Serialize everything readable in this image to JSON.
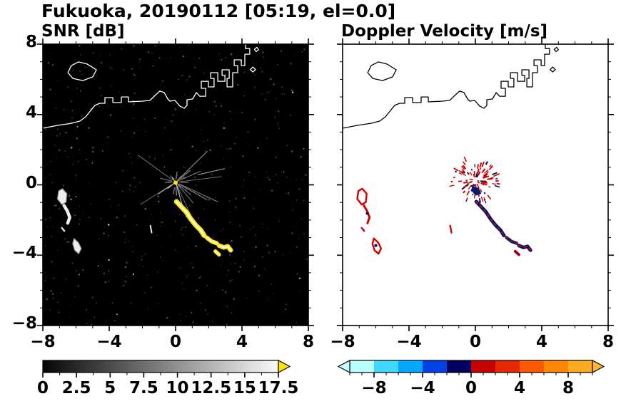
{
  "figure": {
    "title": "Fukuoka, 20190112 [05:19, el=0.0]"
  },
  "panels": [
    {
      "title": "SNR [dB]",
      "bg": "#000000",
      "coast_color": "#ffffff"
    },
    {
      "title": "Doppler Velocity [m/s]",
      "bg": "#ffffff",
      "coast_color": "#000000"
    }
  ],
  "axes": {
    "range": [
      -8,
      8
    ],
    "minor_step": 1,
    "tick_values": [
      -8,
      -4,
      0,
      4,
      8
    ],
    "tick_labels": [
      "−8",
      "−4",
      "0",
      "4",
      "8"
    ]
  },
  "colorbars": [
    {
      "name": "snr-scale",
      "range": [
        0,
        17.5
      ],
      "minor_step": 1.25,
      "values": [
        0,
        2.5,
        5,
        7.5,
        10,
        12.5,
        15,
        17.5
      ],
      "labels": [
        "0",
        "2.5",
        "5",
        "7.5",
        "10",
        "12.5",
        "15",
        "17.5"
      ],
      "stops": [
        [
          0,
          "#050505"
        ],
        [
          1,
          "#fafafa"
        ]
      ],
      "arrow_right": "#ffe600"
    },
    {
      "name": "velocity-scale",
      "range": [
        -10,
        10
      ],
      "minor_step": 1,
      "values": [
        -8,
        -4,
        0,
        4,
        8
      ],
      "labels": [
        "−8",
        "−4",
        "0",
        "4",
        "8"
      ],
      "segments": [
        [
          -10,
          -8,
          "#b8ffff"
        ],
        [
          -8,
          -6,
          "#40d8ff"
        ],
        [
          -6,
          -4,
          "#00a8ff"
        ],
        [
          -4,
          -2,
          "#0040e8"
        ],
        [
          -2,
          0,
          "#000060"
        ],
        [
          0,
          2,
          "#c80000"
        ],
        [
          2,
          4,
          "#e82800"
        ],
        [
          4,
          6,
          "#ff5800"
        ],
        [
          6,
          8,
          "#ff8800"
        ],
        [
          8,
          10,
          "#ffaa20"
        ]
      ],
      "arrow_left": "#ccffff",
      "arrow_right": "#ffb830"
    }
  ],
  "chart_data": {
    "type": "heatmap",
    "title": "Fukuoka, 20190112 [05:19, el=0.0]",
    "x_range": [
      -8,
      8
    ],
    "y_range": [
      -8,
      8
    ],
    "x_ticks": [
      -8,
      -4,
      0,
      4,
      8
    ],
    "y_ticks": [
      -8,
      -4,
      0,
      4,
      8
    ],
    "panels": [
      {
        "name": "SNR",
        "units": "dB",
        "value_range": [
          0,
          17.5
        ],
        "colormap": "grayscale",
        "over_color": "#ffe600",
        "background": "#000000"
      },
      {
        "name": "Doppler Velocity",
        "units": "m/s",
        "value_range": [
          -10,
          10
        ],
        "colormap": "cyan-blue-navy-red-orange",
        "background": "#ffffff"
      }
    ],
    "geometry": {
      "coastlines": [
        {
          "name": "mainland-coast",
          "closed": false,
          "pts": [
            [
              -8,
              3.22
            ],
            [
              -7.14,
              3.38
            ],
            [
              -6.28,
              3.5
            ],
            [
              -5.76,
              3.63
            ],
            [
              -5.42,
              3.87
            ],
            [
              -5.08,
              4.27
            ],
            [
              -4.86,
              4.52
            ],
            [
              -4.56,
              4.64
            ],
            [
              -4.26,
              4.64
            ],
            [
              -4.26,
              4.96
            ],
            [
              -3.78,
              4.96
            ],
            [
              -3.78,
              4.68
            ],
            [
              -3.27,
              4.68
            ],
            [
              -3.27,
              5.0
            ],
            [
              -2.84,
              5.0
            ],
            [
              -2.84,
              4.72
            ],
            [
              -1.98,
              4.76
            ],
            [
              -1.55,
              4.8
            ],
            [
              -1.2,
              5.12
            ],
            [
              -0.95,
              5.33
            ],
            [
              -0.69,
              5.25
            ],
            [
              -0.47,
              4.88
            ],
            [
              -0.34,
              4.76
            ],
            [
              -0.04,
              4.8
            ],
            [
              0.26,
              4.48
            ],
            [
              0.52,
              4.35
            ],
            [
              0.69,
              4.52
            ],
            [
              0.69,
              4.84
            ],
            [
              1.03,
              4.88
            ],
            [
              1.25,
              5.25
            ],
            [
              1.46,
              5.04
            ],
            [
              1.81,
              5.04
            ],
            [
              1.81,
              5.49
            ],
            [
              1.55,
              5.49
            ],
            [
              1.55,
              5.89
            ],
            [
              1.98,
              5.89
            ],
            [
              1.98,
              5.57
            ],
            [
              2.32,
              5.57
            ],
            [
              2.32,
              6.05
            ],
            [
              2.11,
              6.05
            ],
            [
              2.11,
              6.38
            ],
            [
              2.54,
              6.38
            ],
            [
              2.54,
              5.89
            ],
            [
              2.97,
              5.89
            ],
            [
              2.97,
              6.22
            ],
            [
              2.8,
              6.22
            ],
            [
              2.8,
              6.54
            ],
            [
              3.23,
              6.54
            ],
            [
              3.23,
              6.05
            ],
            [
              3.1,
              6.05
            ],
            [
              3.1,
              5.57
            ],
            [
              3.44,
              5.57
            ],
            [
              3.44,
              6.38
            ],
            [
              3.74,
              6.38
            ],
            [
              3.74,
              6.78
            ],
            [
              3.53,
              6.78
            ],
            [
              3.53,
              7.11
            ],
            [
              3.96,
              7.11
            ],
            [
              3.96,
              6.78
            ],
            [
              4.17,
              6.78
            ],
            [
              4.17,
              7.43
            ],
            [
              4.47,
              7.43
            ],
            [
              4.47,
              7.75
            ],
            [
              4.21,
              7.75
            ],
            [
              4.21,
              8.0
            ]
          ]
        },
        {
          "name": "island",
          "closed": true,
          "pts": [
            [
              -6.49,
              6.38
            ],
            [
              -6.28,
              6.78
            ],
            [
              -5.85,
              6.99
            ],
            [
              -5.33,
              6.87
            ],
            [
              -4.77,
              6.54
            ],
            [
              -4.99,
              6.14
            ],
            [
              -5.59,
              5.93
            ],
            [
              -6.19,
              6.05
            ]
          ]
        },
        {
          "name": "islet-1",
          "closed": true,
          "pts": [
            [
              4.5,
              6.55
            ],
            [
              4.66,
              6.7
            ],
            [
              4.82,
              6.55
            ],
            [
              4.66,
              6.42
            ]
          ]
        },
        {
          "name": "islet-2",
          "closed": true,
          "pts": [
            [
              4.75,
              7.7
            ],
            [
              4.9,
              7.82
            ],
            [
              5.0,
              7.68
            ],
            [
              4.86,
              7.58
            ]
          ]
        }
      ],
      "echoes": [
        {
          "name": "cluster-blob-top",
          "kind": "poly",
          "pts": [
            [
              -7.05,
              -0.35
            ],
            [
              -6.82,
              -0.22
            ],
            [
              -6.55,
              -0.5
            ],
            [
              -6.6,
              -0.98
            ],
            [
              -6.85,
              -1.12
            ],
            [
              -7.12,
              -0.8
            ]
          ],
          "snr": {
            "fill": "#ededed",
            "stroke": "#909090",
            "w": 1.2
          },
          "vel": {
            "fill": "none",
            "stroke": "#d40000",
            "w": 2.4
          }
        },
        {
          "name": "cluster-arc",
          "kind": "line",
          "pts": [
            [
              -6.72,
              -1.18
            ],
            [
              -6.52,
              -1.5
            ],
            [
              -6.38,
              -1.85
            ],
            [
              -6.5,
              -2.18
            ]
          ],
          "snr": {
            "stroke": "#eeeeee",
            "w": 4.5
          },
          "vel": {
            "stroke": "#d40000",
            "w": 3
          }
        },
        {
          "name": "cluster-speck",
          "kind": "line",
          "pts": [
            [
              -6.85,
              -2.45
            ],
            [
              -6.7,
              -2.62
            ]
          ],
          "snr": {
            "stroke": "#dddddd",
            "w": 2.5
          },
          "vel": {
            "stroke": "#d40000",
            "w": 2.5
          }
        },
        {
          "name": "cluster-blob-bottom",
          "kind": "poly",
          "pts": [
            [
              -6.12,
              -3.05
            ],
            [
              -5.86,
              -3.28
            ],
            [
              -5.68,
              -3.62
            ],
            [
              -5.84,
              -3.92
            ],
            [
              -6.08,
              -3.72
            ],
            [
              -6.2,
              -3.35
            ]
          ],
          "snr": {
            "fill": "#ededed",
            "stroke": "#909090",
            "w": 1.2
          },
          "vel": {
            "fill": "none",
            "stroke": "#d40000",
            "w": 2.4
          }
        },
        {
          "name": "cluster-navy-dot-1",
          "kind": "dot",
          "c": [
            -6.0,
            -3.45
          ],
          "r": 2.2,
          "vel": {
            "fill": "#001a66"
          }
        },
        {
          "name": "cluster-navy-dot-2",
          "kind": "dot",
          "c": [
            -6.52,
            -1.62
          ],
          "r": 2,
          "vel": {
            "fill": "#001a66"
          }
        },
        {
          "name": "echo-arc-upper",
          "kind": "line",
          "pts": [
            [
              0.05,
              -0.95
            ],
            [
              0.32,
              -1.22
            ],
            [
              0.62,
              -1.52
            ],
            [
              0.92,
              -1.95
            ],
            [
              1.22,
              -2.3
            ],
            [
              1.52,
              -2.58
            ],
            [
              1.72,
              -2.88
            ]
          ],
          "snr": {
            "stroke": "#ffe600",
            "w": 7,
            "core": {
              "stroke": "#ffffff",
              "w": 2.4
            }
          },
          "vel": {
            "stroke": "#001a66",
            "w": 5,
            "core": {
              "stroke": "#d40000",
              "w": 1.8,
              "dash": "3 5"
            }
          }
        },
        {
          "name": "echo-arc-mid",
          "kind": "line",
          "pts": [
            [
              1.88,
              -3.0
            ],
            [
              2.18,
              -3.22
            ],
            [
              2.48,
              -3.32
            ]
          ],
          "snr": {
            "stroke": "#ffe600",
            "w": 6,
            "core": {
              "stroke": "#ffffff",
              "w": 2
            }
          },
          "vel": {
            "stroke": "#001a66",
            "w": 4.5,
            "core": {
              "stroke": "#d40000",
              "w": 1.6,
              "dash": "3 4"
            }
          }
        },
        {
          "name": "echo-blob-right",
          "kind": "line",
          "pts": [
            [
              2.62,
              -3.45
            ],
            [
              2.9,
              -3.56
            ],
            [
              3.14,
              -3.5
            ],
            [
              3.32,
              -3.72
            ]
          ],
          "snr": {
            "stroke": "#ffe600",
            "w": 6.5,
            "core": {
              "stroke": "#ffffff",
              "w": 2.2
            }
          },
          "vel": {
            "stroke": "#001a66",
            "w": 5,
            "core": {
              "stroke": "#d40000",
              "w": 1.8,
              "dash": "4 4"
            }
          }
        },
        {
          "name": "echo-blob-low",
          "kind": "line",
          "pts": [
            [
              2.4,
              -3.78
            ],
            [
              2.62,
              -3.97
            ]
          ],
          "snr": {
            "stroke": "#ffe600",
            "w": 5.5,
            "core": {
              "stroke": "#ffffff",
              "w": 1.8
            }
          },
          "vel": {
            "stroke": "#d40000",
            "w": 4,
            "core": {
              "stroke": "#001a66",
              "w": 1.5,
              "dash": "2 3"
            }
          }
        },
        {
          "name": "small-dash",
          "kind": "line",
          "pts": [
            [
              -1.52,
              -2.32
            ],
            [
              -1.44,
              -2.72
            ]
          ],
          "snr": {
            "stroke": "#e8e8e8",
            "w": 2
          },
          "vel": {
            "stroke": "#d40000",
            "w": 2.4
          }
        },
        {
          "name": "streak-right",
          "kind": "line",
          "pts": [
            [
              1.35,
              0.58
            ],
            [
              2.95,
              0.92
            ]
          ],
          "snr": {
            "stroke": "#9a9a9a",
            "w": 1.2
          }
        },
        {
          "name": "vel-center-navy-blob",
          "kind": "poly",
          "pts": [
            [
              -0.18,
              -0.08
            ],
            [
              0.2,
              -0.18
            ],
            [
              0.36,
              -0.5
            ],
            [
              0.02,
              -0.62
            ],
            [
              -0.22,
              -0.35
            ]
          ],
          "vel": {
            "fill": "#001a66",
            "stroke": "none",
            "w": 0
          }
        },
        {
          "name": "snr-center-dot",
          "kind": "dot",
          "c": [
            0.0,
            0.12
          ],
          "r": 3,
          "snr": {
            "fill": "#ffe600"
          }
        },
        {
          "name": "vel-red-dash-right",
          "kind": "line",
          "pts": [
            [
              1.12,
              0.5
            ],
            [
              1.42,
              0.62
            ]
          ],
          "vel": {
            "stroke": "#d40000",
            "w": 1.8
          }
        }
      ],
      "noise": {
        "seed": 17,
        "count": 520
      },
      "spokes": {
        "seed": 5,
        "count": 30,
        "center": [
          0,
          0.15
        ],
        "max_len": 2.4
      },
      "speckles": {
        "seed": 9,
        "count": 110,
        "center": [
          0,
          0.25
        ],
        "max_radius": 1.25,
        "colors": [
          "#d40000",
          "#001a66"
        ]
      }
    }
  }
}
